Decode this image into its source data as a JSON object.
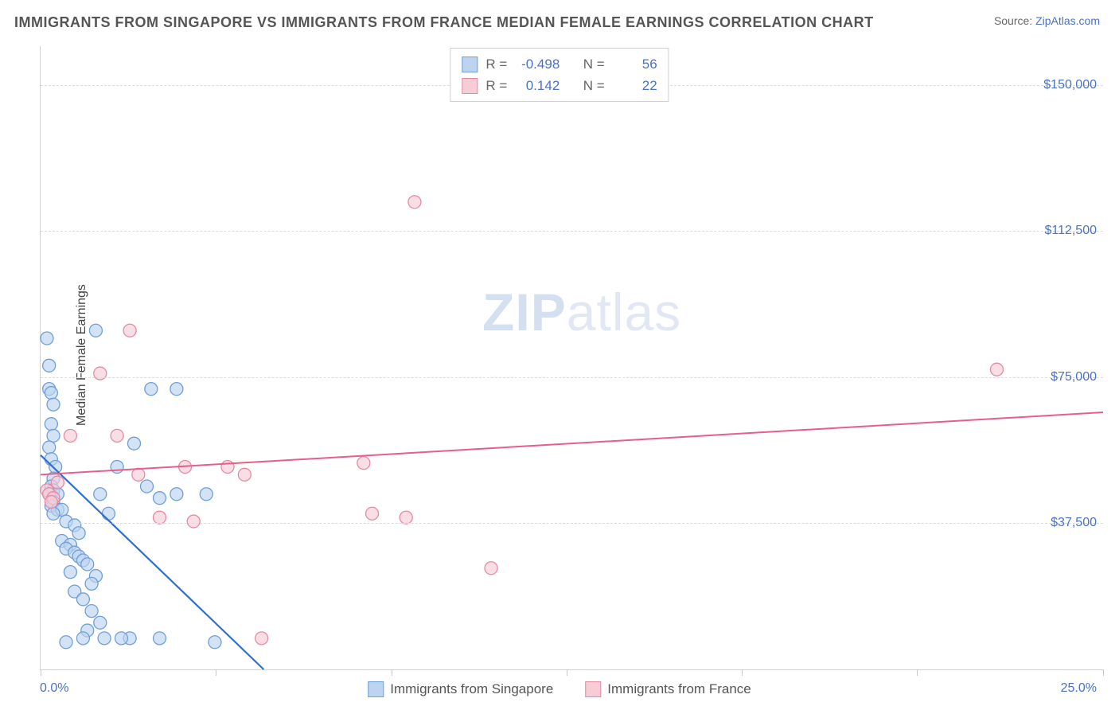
{
  "header": {
    "title": "IMMIGRANTS FROM SINGAPORE VS IMMIGRANTS FROM FRANCE MEDIAN FEMALE EARNINGS CORRELATION CHART",
    "source_prefix": "Source: ",
    "source_link": "ZipAtlas.com"
  },
  "watermark": {
    "zip": "ZIP",
    "atlas": "atlas"
  },
  "chart": {
    "type": "scatter",
    "x_axis": {
      "min": 0.0,
      "max": 25.0,
      "min_label": "0.0%",
      "max_label": "25.0%",
      "ticks_pct": [
        0,
        16.5,
        33,
        49.5,
        66,
        82.5,
        100
      ]
    },
    "y_axis": {
      "title": "Median Female Earnings",
      "min": 0,
      "max": 160000,
      "gridlines": [
        {
          "value": 37500,
          "label": "$37,500"
        },
        {
          "value": 75000,
          "label": "$75,000"
        },
        {
          "value": 112500,
          "label": "$112,500"
        },
        {
          "value": 150000,
          "label": "$150,000"
        }
      ]
    },
    "series": [
      {
        "key": "singapore",
        "label": "Immigrants from Singapore",
        "marker_fill": "#bcd4ef",
        "marker_stroke": "#6f9fd8",
        "marker_fill_opacity": 0.65,
        "marker_radius": 8,
        "trend_color": "#2f6fd0",
        "trend_width": 2.2,
        "trend": {
          "x1_pct": 0,
          "y1_val": 55000,
          "x2_pct": 21,
          "y2_val": 0
        },
        "stats": {
          "R": "-0.498",
          "N": "56"
        },
        "points": [
          {
            "x": 0.2,
            "y": 78000
          },
          {
            "x": 0.2,
            "y": 72000
          },
          {
            "x": 0.25,
            "y": 71000
          },
          {
            "x": 0.3,
            "y": 68000
          },
          {
            "x": 0.25,
            "y": 63000
          },
          {
            "x": 0.3,
            "y": 60000
          },
          {
            "x": 0.2,
            "y": 57000
          },
          {
            "x": 0.25,
            "y": 54000
          },
          {
            "x": 0.35,
            "y": 52000
          },
          {
            "x": 0.3,
            "y": 49000
          },
          {
            "x": 0.25,
            "y": 47000
          },
          {
            "x": 0.3,
            "y": 46000
          },
          {
            "x": 0.4,
            "y": 45000
          },
          {
            "x": 0.2,
            "y": 45000
          },
          {
            "x": 0.3,
            "y": 43000
          },
          {
            "x": 0.25,
            "y": 42000
          },
          {
            "x": 0.4,
            "y": 41000
          },
          {
            "x": 0.5,
            "y": 41000
          },
          {
            "x": 0.3,
            "y": 40000
          },
          {
            "x": 0.6,
            "y": 38000
          },
          {
            "x": 0.8,
            "y": 37000
          },
          {
            "x": 0.9,
            "y": 35000
          },
          {
            "x": 0.5,
            "y": 33000
          },
          {
            "x": 0.7,
            "y": 32000
          },
          {
            "x": 0.6,
            "y": 31000
          },
          {
            "x": 0.8,
            "y": 30000
          },
          {
            "x": 0.9,
            "y": 29000
          },
          {
            "x": 1.0,
            "y": 28000
          },
          {
            "x": 1.1,
            "y": 27000
          },
          {
            "x": 0.7,
            "y": 25000
          },
          {
            "x": 1.3,
            "y": 24000
          },
          {
            "x": 1.2,
            "y": 22000
          },
          {
            "x": 0.8,
            "y": 20000
          },
          {
            "x": 1.0,
            "y": 18000
          },
          {
            "x": 1.2,
            "y": 15000
          },
          {
            "x": 1.4,
            "y": 12000
          },
          {
            "x": 1.1,
            "y": 10000
          },
          {
            "x": 1.0,
            "y": 8000
          },
          {
            "x": 0.6,
            "y": 7000
          },
          {
            "x": 1.4,
            "y": 45000
          },
          {
            "x": 1.3,
            "y": 87000
          },
          {
            "x": 2.6,
            "y": 72000
          },
          {
            "x": 3.2,
            "y": 72000
          },
          {
            "x": 1.8,
            "y": 52000
          },
          {
            "x": 2.2,
            "y": 58000
          },
          {
            "x": 2.5,
            "y": 47000
          },
          {
            "x": 2.8,
            "y": 44000
          },
          {
            "x": 3.2,
            "y": 45000
          },
          {
            "x": 3.9,
            "y": 45000
          },
          {
            "x": 4.1,
            "y": 7000
          },
          {
            "x": 2.1,
            "y": 8000
          },
          {
            "x": 2.8,
            "y": 8000
          },
          {
            "x": 1.5,
            "y": 8000
          },
          {
            "x": 1.9,
            "y": 8000
          },
          {
            "x": 1.6,
            "y": 40000
          },
          {
            "x": 0.15,
            "y": 85000
          }
        ]
      },
      {
        "key": "france",
        "label": "Immigrants from France",
        "marker_fill": "#f6cdd7",
        "marker_stroke": "#e68aa3",
        "marker_fill_opacity": 0.65,
        "marker_radius": 8,
        "trend_color": "#e55f8a",
        "trend_width": 2,
        "trend": {
          "x1_pct": 0,
          "y1_val": 50000,
          "x2_pct": 100,
          "y2_val": 66000
        },
        "stats": {
          "R": "0.142",
          "N": "22"
        },
        "points": [
          {
            "x": 0.15,
            "y": 46000
          },
          {
            "x": 0.2,
            "y": 45000
          },
          {
            "x": 0.3,
            "y": 44000
          },
          {
            "x": 0.25,
            "y": 43000
          },
          {
            "x": 0.4,
            "y": 48000
          },
          {
            "x": 0.7,
            "y": 60000
          },
          {
            "x": 1.4,
            "y": 76000
          },
          {
            "x": 1.8,
            "y": 60000
          },
          {
            "x": 2.1,
            "y": 87000
          },
          {
            "x": 2.3,
            "y": 50000
          },
          {
            "x": 2.8,
            "y": 39000
          },
          {
            "x": 3.4,
            "y": 52000
          },
          {
            "x": 3.6,
            "y": 38000
          },
          {
            "x": 4.4,
            "y": 52000
          },
          {
            "x": 4.8,
            "y": 50000
          },
          {
            "x": 5.2,
            "y": 8000
          },
          {
            "x": 7.6,
            "y": 53000
          },
          {
            "x": 7.8,
            "y": 40000
          },
          {
            "x": 8.6,
            "y": 39000
          },
          {
            "x": 8.8,
            "y": 120000
          },
          {
            "x": 10.6,
            "y": 26000
          },
          {
            "x": 22.5,
            "y": 77000
          }
        ]
      }
    ]
  },
  "legend_stats_labels": {
    "R": "R =",
    "N": "N ="
  }
}
